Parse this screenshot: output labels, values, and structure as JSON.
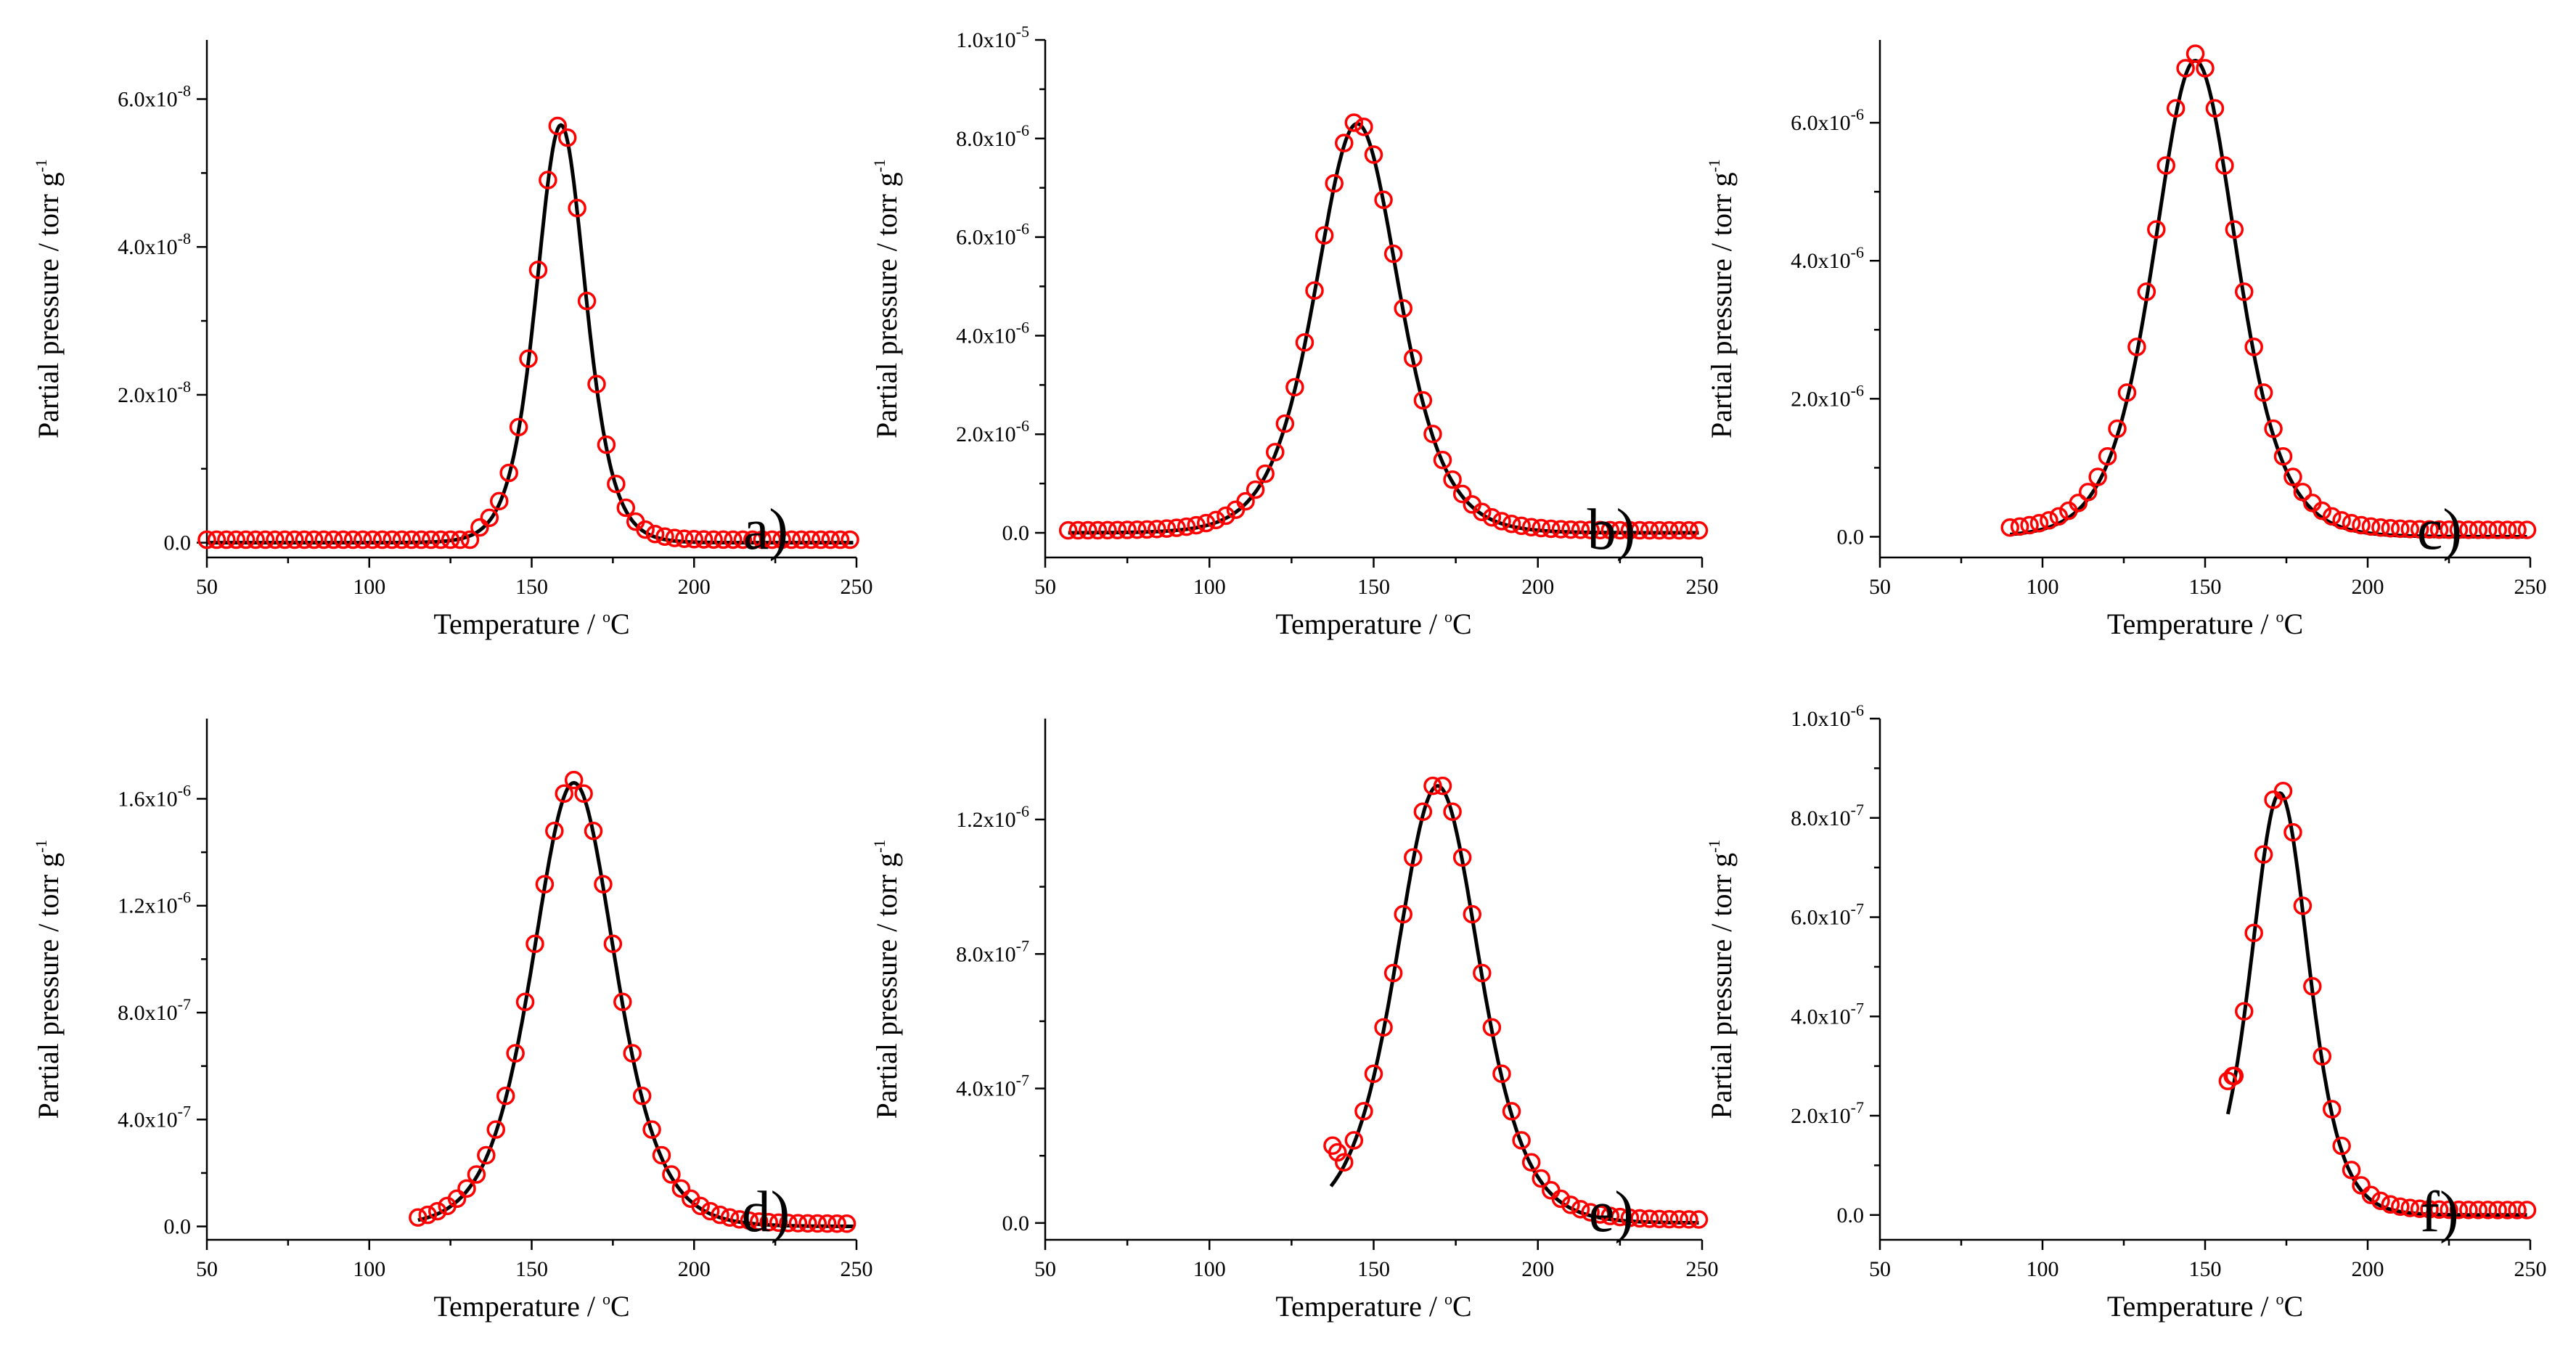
{
  "figure": {
    "axis_titles": {
      "xlabel_prefix": "Temperature / ",
      "xlabel_sup": "o",
      "xlabel_suffix": "C",
      "ylabel_prefix": "Partial pressure / torr g",
      "ylabel_sup": "-1"
    }
  },
  "chart_data": [
    {
      "type": "scatter",
      "panel": "a)",
      "xlabel": "Temperature / oC",
      "ylabel": "Partial pressure / torr g-1",
      "xlim": [
        50,
        250
      ],
      "ylim": [
        -2e-09,
        6.8e-08
      ],
      "xticks": [
        50,
        100,
        150,
        200,
        250
      ],
      "xtick_labels": [
        "50",
        "100",
        "150",
        "200",
        "250"
      ],
      "yticks": [
        0,
        2e-08,
        4e-08,
        6e-08
      ],
      "ytick_mantissas": [
        "0.0",
        "2.0x10",
        "4.0x10",
        "6.0x10"
      ],
      "ytick_exponents": [
        "",
        "-8",
        "-8",
        "-8"
      ],
      "scatter_range": [
        50,
        249
      ],
      "scatter_step": 3,
      "fit_range": [
        50,
        249
      ],
      "peak_T": 159,
      "peak_P": 5.65e-08,
      "fwhm": 18,
      "baseline": 4e-10,
      "fit_baseline": 0,
      "onset_T": 132,
      "peak_shift": 0,
      "extra_points": [],
      "legend_position": "bottom-right",
      "series": [
        {
          "name": "experimental",
          "marker": "open-circle",
          "color": "#ff0000"
        },
        {
          "name": "fit",
          "style": "line",
          "color": "#000000"
        }
      ]
    },
    {
      "type": "scatter",
      "panel": "b)",
      "xlabel": "Temperature / oC",
      "ylabel": "Partial pressure / torr g-1",
      "xlim": [
        50,
        250
      ],
      "ylim": [
        -5e-07,
        1e-05
      ],
      "xticks": [
        50,
        100,
        150,
        200,
        250
      ],
      "xtick_labels": [
        "50",
        "100",
        "150",
        "200",
        "250"
      ],
      "yticks": [
        0,
        2e-06,
        4e-06,
        6e-06,
        8e-06,
        1e-05
      ],
      "ytick_mantissas": [
        "0.0",
        "2.0x10",
        "4.0x10",
        "6.0x10",
        "8.0x10",
        "1.0x10"
      ],
      "ytick_exponents": [
        "",
        "-6",
        "-6",
        "-6",
        "-6",
        "-5"
      ],
      "scatter_range": [
        57,
        249
      ],
      "scatter_step": 3,
      "fit_range": [
        57,
        249
      ],
      "peak_T": 145,
      "peak_P": 8.3e-06,
      "fwhm": 30,
      "baseline": 5e-08,
      "fit_baseline": 0,
      "onset_T": 0,
      "peak_shift": 0,
      "extra_points": [],
      "legend_position": "bottom-right",
      "series": [
        {
          "name": "experimental",
          "marker": "open-circle",
          "color": "#ff0000"
        },
        {
          "name": "fit",
          "style": "line",
          "color": "#000000"
        }
      ]
    },
    {
      "type": "scatter",
      "panel": "c)",
      "xlabel": "Temperature / oC",
      "ylabel": "Partial pressure / torr g-1",
      "xlim": [
        50,
        250
      ],
      "ylim": [
        -3e-07,
        7.2e-06
      ],
      "xticks": [
        50,
        100,
        150,
        200,
        250
      ],
      "xtick_labels": [
        "50",
        "100",
        "150",
        "200",
        "250"
      ],
      "yticks": [
        0,
        2e-06,
        4e-06,
        6e-06
      ],
      "ytick_mantissas": [
        "0.0",
        "2.0x10",
        "4.0x10",
        "6.0x10"
      ],
      "ytick_exponents": [
        "",
        "-6",
        "-6",
        "-6"
      ],
      "scatter_range": [
        90,
        249
      ],
      "scatter_step": 3,
      "fit_range": [
        90,
        249
      ],
      "peak_T": 147,
      "peak_P": 6.9e-06,
      "fwhm": 30,
      "baseline": 1e-07,
      "fit_baseline": 0,
      "onset_T": 0,
      "peak_shift": 0,
      "extra_points": [],
      "legend_position": "bottom-right",
      "series": [
        {
          "name": "experimental",
          "marker": "open-circle",
          "color": "#ff0000"
        },
        {
          "name": "fit",
          "style": "line",
          "color": "#000000"
        }
      ]
    },
    {
      "type": "scatter",
      "panel": "d)",
      "xlabel": "Temperature / oC",
      "ylabel": "Partial pressure / torr g-1",
      "xlim": [
        50,
        250
      ],
      "ylim": [
        -5e-08,
        1.9e-06
      ],
      "xticks": [
        50,
        100,
        150,
        200,
        250
      ],
      "xtick_labels": [
        "50",
        "100",
        "150",
        "200",
        "250"
      ],
      "yticks": [
        0,
        4e-07,
        8e-07,
        1.2e-06,
        1.6e-06
      ],
      "ytick_mantissas": [
        "0.0",
        "4.0x10",
        "8.0x10",
        "1.2x10",
        "1.6x10"
      ],
      "ytick_exponents": [
        "",
        "-7",
        "-7",
        "-6",
        "-6"
      ],
      "scatter_range": [
        115,
        249
      ],
      "scatter_step": 3,
      "fit_range": [
        115,
        249
      ],
      "peak_T": 163,
      "peak_P": 1.66e-06,
      "fwhm": 30,
      "baseline": 1e-08,
      "fit_baseline": 0,
      "onset_T": 0,
      "peak_shift": 0,
      "extra_points": [],
      "legend_position": "bottom-right",
      "series": [
        {
          "name": "experimental",
          "marker": "open-circle",
          "color": "#ff0000"
        },
        {
          "name": "fit",
          "style": "line",
          "color": "#000000"
        }
      ]
    },
    {
      "type": "scatter",
      "panel": "e)",
      "xlabel": "Temperature / oC",
      "ylabel": "Partial pressure / torr g-1",
      "xlim": [
        50,
        250
      ],
      "ylim": [
        -5e-08,
        1.5e-06
      ],
      "xticks": [
        50,
        100,
        150,
        200,
        250
      ],
      "xtick_labels": [
        "50",
        "100",
        "150",
        "200",
        "250"
      ],
      "yticks": [
        0,
        4e-07,
        8e-07,
        1.2e-06
      ],
      "ytick_mantissas": [
        "0.0",
        "4.0x10",
        "8.0x10",
        "1.2x10"
      ],
      "ytick_exponents": [
        "",
        "-7",
        "-7",
        "-6"
      ],
      "scatter_range": [
        141,
        249
      ],
      "scatter_step": 3,
      "fit_range": [
        137,
        249
      ],
      "peak_T": 168,
      "peak_P": 1.3e-06,
      "fwhm": 30,
      "baseline": 1e-08,
      "fit_baseline": 0,
      "onset_T": 0,
      "peak_shift": 1.5,
      "extra_points": [
        [
          137.5,
          2.3e-07
        ],
        [
          139,
          2.1e-07
        ]
      ],
      "legend_position": "bottom-right",
      "series": [
        {
          "name": "experimental",
          "marker": "open-circle",
          "color": "#ff0000"
        },
        {
          "name": "fit",
          "style": "line",
          "color": "#000000"
        }
      ]
    },
    {
      "type": "scatter",
      "panel": "f)",
      "xlabel": "Temperature / oC",
      "ylabel": "Partial pressure / torr g-1",
      "xlim": [
        50,
        250
      ],
      "ylim": [
        -5e-08,
        1e-06
      ],
      "xticks": [
        50,
        100,
        150,
        200,
        250
      ],
      "xtick_labels": [
        "50",
        "100",
        "150",
        "200",
        "250"
      ],
      "yticks": [
        0,
        2e-07,
        4e-07,
        6e-07,
        8e-07,
        1e-06
      ],
      "ytick_mantissas": [
        "0.0",
        "2.0x10",
        "4.0x10",
        "6.0x10",
        "8.0x10",
        "1.0x10"
      ],
      "ytick_exponents": [
        "",
        "-7",
        "-7",
        "-7",
        "-7",
        "-6"
      ],
      "scatter_range": [
        159,
        249
      ],
      "scatter_step": 3,
      "fit_range": [
        157,
        249
      ],
      "peak_T": 173,
      "peak_P": 8.5e-07,
      "fwhm": 21,
      "baseline": 1e-08,
      "fit_baseline": 0,
      "onset_T": 0,
      "peak_shift": 0,
      "extra_points": [
        [
          157,
          2.7e-07
        ],
        [
          158.5,
          2.8e-07
        ]
      ],
      "legend_position": "bottom-right",
      "series": [
        {
          "name": "experimental",
          "marker": "open-circle",
          "color": "#ff0000"
        },
        {
          "name": "fit",
          "style": "line",
          "color": "#000000"
        }
      ]
    }
  ]
}
